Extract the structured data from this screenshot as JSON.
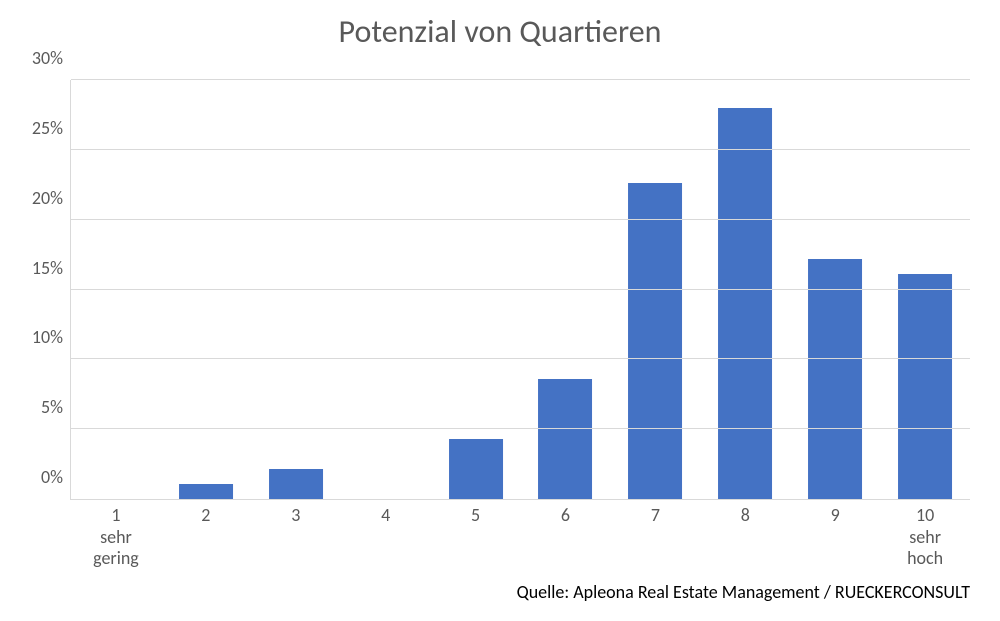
{
  "chart": {
    "type": "bar",
    "title": "Potenzial von Quartieren",
    "title_fontsize": 32,
    "title_color": "#595959",
    "categories": [
      "1\nsehr\ngering",
      "2",
      "3",
      "4",
      "5",
      "6",
      "7",
      "8",
      "9",
      "10\nsehr\nhoch"
    ],
    "values": [
      0,
      1.1,
      2.15,
      0,
      4.3,
      8.6,
      22.6,
      28.0,
      17.2,
      16.1
    ],
    "bar_color": "#4472c4",
    "bar_width_pct": 60,
    "ylim": [
      0,
      30
    ],
    "ytick_step": 5,
    "y_suffix": "%",
    "grid_color": "#d9d9d9",
    "axis_label_color": "#595959",
    "axis_fontsize": 18,
    "background_color": "#ffffff",
    "source": "Quelle: Apleona Real Estate Management / RUECKERCONSULT",
    "source_fontsize": 18
  }
}
